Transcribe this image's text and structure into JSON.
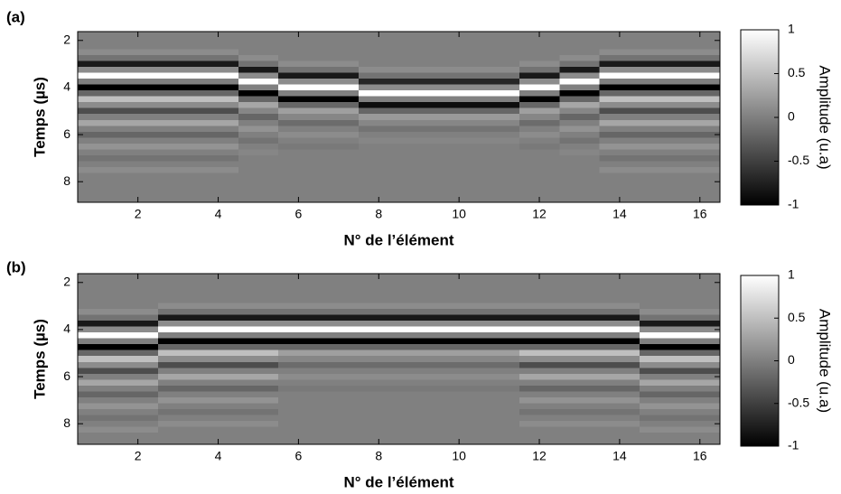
{
  "chart_data": [
    {
      "type": "heatmap",
      "panel_label": "(a)",
      "xlabel": "N° de l’élément",
      "ylabel": "Temps  (µs)",
      "colorbar_label": "Amplitude  (u.a)",
      "xlim": [
        0.5,
        16.5
      ],
      "ylim": [
        1.625,
        8.875
      ],
      "y_reversed": true,
      "xticks": [
        2,
        4,
        6,
        8,
        10,
        12,
        14,
        16
      ],
      "yticks": [
        2,
        4,
        6,
        8
      ],
      "clim": [
        -1,
        1
      ],
      "cticks": [
        -1,
        -0.5,
        0,
        0.5,
        1
      ],
      "colormap": "gray",
      "x": [
        1,
        2,
        3,
        4,
        5,
        6,
        7,
        8,
        9,
        10,
        11,
        12,
        13,
        14,
        15,
        16
      ],
      "y": [
        1.75,
        2,
        2.25,
        2.5,
        2.75,
        3,
        3.25,
        3.5,
        3.75,
        4,
        4.25,
        4.5,
        4.75,
        5,
        5.25,
        5.5,
        5.75,
        6,
        6.25,
        6.5,
        6.75,
        7,
        7.25,
        7.5,
        7.75,
        8,
        8.25,
        8.5,
        8.75
      ],
      "z": [
        [
          0,
          0,
          0,
          0.1,
          -0.1,
          -0.8,
          0.1,
          1,
          0,
          -1,
          -0.2,
          0.5,
          0.1,
          -0.4,
          0,
          0.3,
          0,
          -0.2,
          0,
          0.15,
          0,
          -0.1,
          0,
          0.1,
          0,
          0,
          0,
          0,
          0
        ],
        [
          0,
          0,
          0,
          0.1,
          -0.1,
          -0.8,
          0.1,
          1,
          0,
          -1,
          -0.2,
          0.5,
          0.1,
          -0.4,
          0,
          0.3,
          0,
          -0.2,
          0,
          0.15,
          0,
          -0.1,
          0,
          0.1,
          0,
          0,
          0,
          0,
          0
        ],
        [
          0,
          0,
          0,
          0.1,
          -0.1,
          -0.8,
          0.1,
          1,
          0,
          -1,
          -0.2,
          0.5,
          0.1,
          -0.4,
          0,
          0.3,
          0,
          -0.2,
          0,
          0.15,
          0,
          -0.1,
          0,
          0.1,
          0,
          0,
          0,
          0,
          0
        ],
        [
          0,
          0,
          0,
          0.1,
          -0.1,
          -0.8,
          0.1,
          1,
          0,
          -1,
          -0.2,
          0.5,
          0.1,
          -0.4,
          0,
          0.3,
          0,
          -0.2,
          0,
          0.15,
          0,
          -0.1,
          0,
          0.1,
          0,
          0,
          0,
          0,
          0
        ],
        [
          0,
          0,
          0,
          0,
          0.1,
          -0.1,
          -0.8,
          0.1,
          1,
          0,
          -1,
          -0.2,
          0.3,
          0.05,
          -0.2,
          0,
          0.15,
          0,
          -0.1,
          0,
          0.05,
          0,
          0,
          0,
          0,
          0,
          0,
          0,
          0
        ],
        [
          0,
          0,
          0,
          0,
          0,
          0.1,
          -0.1,
          -0.8,
          0.1,
          1,
          0,
          -1,
          -0.2,
          0.25,
          0.05,
          -0.15,
          0,
          0.1,
          0,
          -0.05,
          0,
          0,
          0,
          0,
          0,
          0,
          0,
          0,
          0
        ],
        [
          0,
          0,
          0,
          0,
          0,
          0.1,
          -0.1,
          -0.8,
          0.1,
          1,
          0,
          -1,
          -0.2,
          0.25,
          0.05,
          -0.15,
          0,
          0.1,
          0,
          -0.05,
          0,
          0,
          0,
          0,
          0,
          0,
          0,
          0,
          0
        ],
        [
          0,
          0,
          0,
          0,
          0,
          0,
          0.1,
          -0.1,
          -0.7,
          0.1,
          1,
          0,
          -0.9,
          -0.2,
          0.2,
          0.05,
          -0.1,
          0,
          0.05,
          0,
          0,
          0,
          0,
          0,
          0,
          0,
          0,
          0,
          0
        ],
        [
          0,
          0,
          0,
          0,
          0,
          0,
          0.1,
          -0.1,
          -0.7,
          0.1,
          1,
          0,
          -0.9,
          -0.2,
          0.2,
          0.05,
          -0.1,
          0,
          0.05,
          0,
          0,
          0,
          0,
          0,
          0,
          0,
          0,
          0,
          0
        ],
        [
          0,
          0,
          0,
          0,
          0,
          0,
          0.1,
          -0.1,
          -0.7,
          0.1,
          1,
          0,
          -0.9,
          -0.2,
          0.2,
          0.05,
          -0.1,
          0,
          0.05,
          0,
          0,
          0,
          0,
          0,
          0,
          0,
          0,
          0,
          0
        ],
        [
          0,
          0,
          0,
          0,
          0,
          0,
          0.1,
          -0.1,
          -0.7,
          0.1,
          1,
          0,
          -0.9,
          -0.2,
          0.2,
          0.05,
          -0.1,
          0,
          0.05,
          0,
          0,
          0,
          0,
          0,
          0,
          0,
          0,
          0,
          0
        ],
        [
          0,
          0,
          0,
          0,
          0,
          0.1,
          -0.1,
          -0.8,
          0.1,
          1,
          0,
          -1,
          -0.2,
          0.25,
          0.05,
          -0.15,
          0,
          0.1,
          0,
          -0.05,
          0,
          0,
          0,
          0,
          0,
          0,
          0,
          0,
          0
        ],
        [
          0,
          0,
          0,
          0,
          0.1,
          -0.1,
          -0.8,
          0.1,
          1,
          0,
          -1,
          -0.2,
          0.3,
          0.05,
          -0.2,
          0,
          0.15,
          0,
          -0.1,
          0,
          0.05,
          0,
          0,
          0,
          0,
          0,
          0,
          0,
          0
        ],
        [
          0,
          0,
          0,
          0.1,
          -0.1,
          -0.8,
          0.1,
          1,
          0,
          -1,
          -0.2,
          0.5,
          0.1,
          -0.4,
          0,
          0.3,
          0,
          -0.2,
          0,
          0.15,
          0,
          -0.1,
          0,
          0.1,
          0,
          0,
          0,
          0,
          0
        ],
        [
          0,
          0,
          0,
          0.1,
          -0.1,
          -0.8,
          0.1,
          1,
          0,
          -1,
          -0.2,
          0.5,
          0.1,
          -0.4,
          0,
          0.3,
          0,
          -0.2,
          0,
          0.15,
          0,
          -0.1,
          0,
          0.1,
          0,
          0,
          0,
          0,
          0
        ],
        [
          0,
          0,
          0,
          0.1,
          -0.1,
          -0.8,
          0.1,
          1,
          0,
          -1,
          -0.2,
          0.5,
          0.1,
          -0.4,
          0,
          0.3,
          0,
          -0.2,
          0,
          0.15,
          0,
          -0.1,
          0,
          0.1,
          0,
          0,
          0,
          0,
          0
        ]
      ]
    },
    {
      "type": "heatmap",
      "panel_label": "(b)",
      "xlabel": "N° de l’élément",
      "ylabel": "Temps  (µs)",
      "colorbar_label": "Amplitude  (u.a)",
      "xlim": [
        0.5,
        16.5
      ],
      "ylim": [
        1.625,
        8.875
      ],
      "y_reversed": true,
      "xticks": [
        2,
        4,
        6,
        8,
        10,
        12,
        14,
        16
      ],
      "yticks": [
        2,
        4,
        6,
        8
      ],
      "clim": [
        -1,
        1
      ],
      "cticks": [
        -1,
        -0.5,
        0,
        0.5,
        1
      ],
      "colormap": "gray",
      "x": [
        1,
        2,
        3,
        4,
        5,
        6,
        7,
        8,
        9,
        10,
        11,
        12,
        13,
        14,
        15,
        16
      ],
      "y": [
        1.75,
        2,
        2.25,
        2.5,
        2.75,
        3,
        3.25,
        3.5,
        3.75,
        4,
        4.25,
        4.5,
        4.75,
        5,
        5.25,
        5.5,
        5.75,
        6,
        6.25,
        6.5,
        6.75,
        7,
        7.25,
        7.5,
        7.75,
        8,
        8.25,
        8.5,
        8.75
      ],
      "z": [
        [
          0,
          0,
          0,
          0,
          0,
          0,
          0.1,
          -0.1,
          -0.8,
          0.1,
          1,
          0,
          -1,
          -0.2,
          0.5,
          0.1,
          -0.4,
          0,
          0.3,
          0,
          -0.2,
          0,
          0.15,
          0,
          -0.1,
          0,
          0.1,
          0,
          0
        ],
        [
          0,
          0,
          0,
          0,
          0,
          0,
          0.1,
          -0.1,
          -0.8,
          0.1,
          1,
          0,
          -1,
          -0.2,
          0.5,
          0.1,
          -0.4,
          0,
          0.3,
          0,
          -0.2,
          0,
          0.15,
          0,
          -0.1,
          0,
          0.1,
          0,
          0
        ],
        [
          0,
          0,
          0,
          0,
          0,
          0.1,
          -0.1,
          -0.8,
          0.1,
          1,
          0,
          -1,
          -0.2,
          0.5,
          0.1,
          -0.4,
          0,
          0.3,
          0,
          -0.2,
          0,
          0.15,
          0,
          -0.1,
          0,
          0.1,
          0,
          0,
          0
        ],
        [
          0,
          0,
          0,
          0,
          0,
          0.1,
          -0.1,
          -0.8,
          0.1,
          1,
          0,
          -1,
          -0.2,
          0.5,
          0.1,
          -0.4,
          0,
          0.3,
          0,
          -0.2,
          0,
          0.15,
          0,
          -0.1,
          0,
          0.1,
          0,
          0,
          0
        ],
        [
          0,
          0,
          0,
          0,
          0,
          0.1,
          -0.1,
          -0.8,
          0.1,
          1,
          0,
          -1,
          -0.2,
          0.5,
          0.1,
          -0.4,
          0,
          0.3,
          0,
          -0.2,
          0,
          0.15,
          0,
          -0.1,
          0,
          0.1,
          0,
          0,
          0
        ],
        [
          0,
          0,
          0,
          0,
          0,
          0.1,
          -0.1,
          -0.8,
          0.1,
          1,
          0,
          -1,
          -0.2,
          0.25,
          0.05,
          -0.15,
          0,
          0.1,
          0,
          -0.05,
          0,
          0,
          0,
          0,
          0,
          0,
          0,
          0,
          0
        ],
        [
          0,
          0,
          0,
          0,
          0,
          0.1,
          -0.1,
          -0.8,
          0.1,
          1,
          0,
          -1,
          -0.2,
          0.25,
          0.05,
          -0.15,
          0,
          0.1,
          0,
          -0.05,
          0,
          0,
          0,
          0,
          0,
          0,
          0,
          0,
          0
        ],
        [
          0,
          0,
          0,
          0,
          0,
          0.1,
          -0.1,
          -0.8,
          0.1,
          1,
          0,
          -1,
          -0.2,
          0.25,
          0.05,
          -0.15,
          0,
          0.1,
          0,
          -0.05,
          0,
          0,
          0,
          0,
          0,
          0,
          0,
          0,
          0
        ],
        [
          0,
          0,
          0,
          0,
          0,
          0.1,
          -0.1,
          -0.8,
          0.1,
          1,
          0,
          -1,
          -0.2,
          0.25,
          0.05,
          -0.15,
          0,
          0.1,
          0,
          -0.05,
          0,
          0,
          0,
          0,
          0,
          0,
          0,
          0,
          0
        ],
        [
          0,
          0,
          0,
          0,
          0,
          0.1,
          -0.1,
          -0.8,
          0.1,
          1,
          0,
          -1,
          -0.2,
          0.25,
          0.05,
          -0.15,
          0,
          0.1,
          0,
          -0.05,
          0,
          0,
          0,
          0,
          0,
          0,
          0,
          0,
          0
        ],
        [
          0,
          0,
          0,
          0,
          0,
          0.1,
          -0.1,
          -0.8,
          0.1,
          1,
          0,
          -1,
          -0.2,
          0.25,
          0.05,
          -0.15,
          0,
          0.1,
          0,
          -0.05,
          0,
          0,
          0,
          0,
          0,
          0,
          0,
          0,
          0
        ],
        [
          0,
          0,
          0,
          0,
          0,
          0.1,
          -0.1,
          -0.8,
          0.1,
          1,
          0,
          -1,
          -0.2,
          0.5,
          0.1,
          -0.4,
          0,
          0.3,
          0,
          -0.2,
          0,
          0.15,
          0,
          -0.1,
          0,
          0.1,
          0,
          0,
          0
        ],
        [
          0,
          0,
          0,
          0,
          0,
          0.1,
          -0.1,
          -0.8,
          0.1,
          1,
          0,
          -1,
          -0.2,
          0.5,
          0.1,
          -0.4,
          0,
          0.3,
          0,
          -0.2,
          0,
          0.15,
          0,
          -0.1,
          0,
          0.1,
          0,
          0,
          0
        ],
        [
          0,
          0,
          0,
          0,
          0,
          0.1,
          -0.1,
          -0.8,
          0.1,
          1,
          0,
          -1,
          -0.2,
          0.5,
          0.1,
          -0.4,
          0,
          0.3,
          0,
          -0.2,
          0,
          0.15,
          0,
          -0.1,
          0,
          0.1,
          0,
          0,
          0
        ],
        [
          0,
          0,
          0,
          0,
          0,
          0,
          0.1,
          -0.1,
          -0.8,
          0.1,
          1,
          0,
          -1,
          -0.2,
          0.5,
          0.1,
          -0.4,
          0,
          0.3,
          0,
          -0.2,
          0,
          0.15,
          0,
          -0.1,
          0,
          0.1,
          0,
          0
        ],
        [
          0,
          0,
          0,
          0,
          0,
          0,
          0.1,
          -0.1,
          -0.8,
          0.1,
          1,
          0,
          -1,
          -0.2,
          0.5,
          0.1,
          -0.4,
          0,
          0.3,
          0,
          -0.2,
          0,
          0.15,
          0,
          -0.1,
          0,
          0.1,
          0,
          0
        ]
      ]
    }
  ]
}
